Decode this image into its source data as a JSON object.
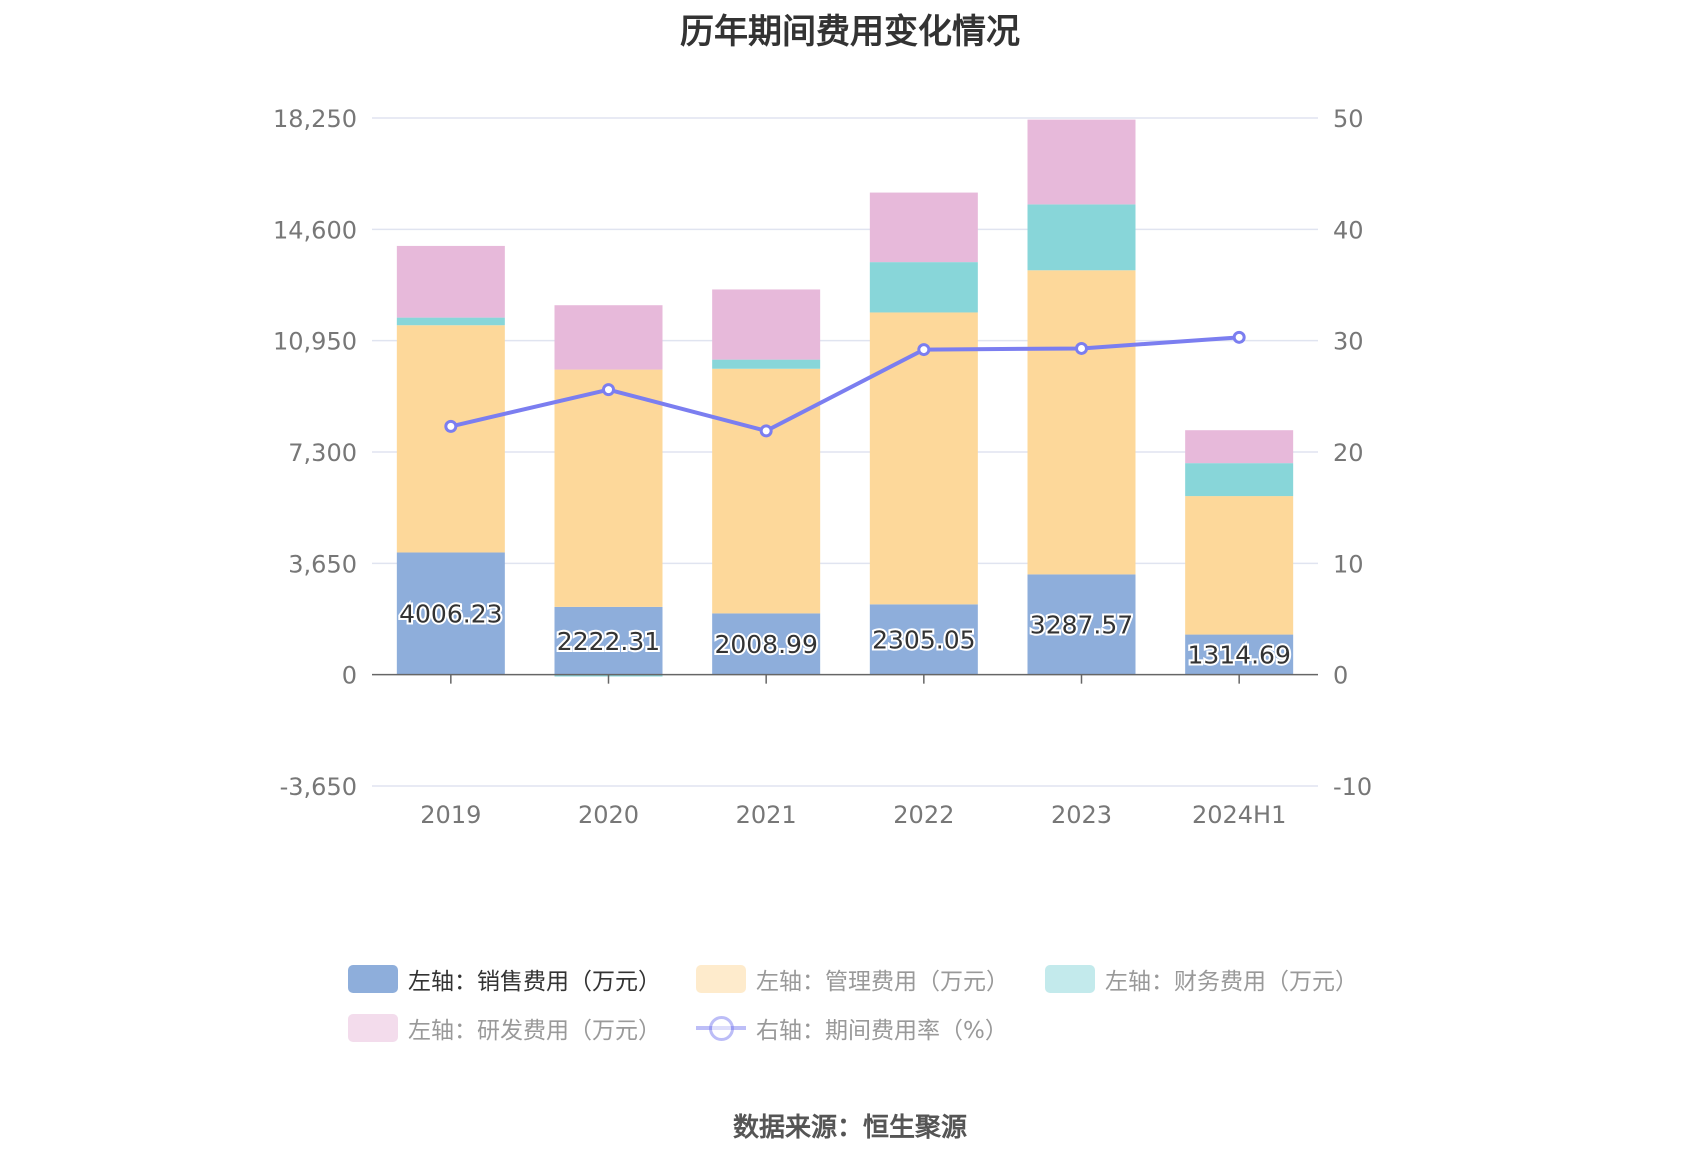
{
  "title": "历年期间费用变化情况",
  "source": "数据来源：恒生聚源",
  "colors": {
    "sales": "#8eaedb",
    "admin": "#fdd89a",
    "finance": "#88d6d9",
    "rnd": "#e7b9da",
    "rate": "#7b7ef0",
    "grid": "#e0e4f0",
    "axis": "#666666",
    "tick_text": "#777777"
  },
  "legend": [
    {
      "label": "左轴：销售费用（万元）",
      "key": "sales",
      "style": "bar",
      "active": true
    },
    {
      "label": "左轴：管理费用（万元）",
      "key": "admin",
      "style": "bar",
      "active": false
    },
    {
      "label": "左轴：财务费用（万元）",
      "key": "finance",
      "style": "bar",
      "active": false
    },
    {
      "label": "左轴：研发费用（万元）",
      "key": "rnd",
      "style": "bar",
      "active": false
    },
    {
      "label": "右轴：期间费用率（%）",
      "key": "rate",
      "style": "line",
      "active": false
    }
  ],
  "chart_data": {
    "type": "bar",
    "stacked": true,
    "title": "历年期间费用变化情况",
    "categories": [
      "2019",
      "2020",
      "2021",
      "2022",
      "2023",
      "2024H1"
    ],
    "left_axis": {
      "min": -3650,
      "max": 18250,
      "ticks": [
        "-3,650",
        "0",
        "3,650",
        "7,300",
        "10,950",
        "14,600",
        "18,250"
      ],
      "tick_values": [
        -3650,
        0,
        3650,
        7300,
        10950,
        14600,
        18250
      ]
    },
    "right_axis": {
      "min": -10,
      "max": 50,
      "ticks": [
        "-10",
        "0",
        "10",
        "20",
        "30",
        "40",
        "50"
      ],
      "tick_values": [
        -10,
        0,
        10,
        20,
        30,
        40,
        50
      ]
    },
    "grid": true,
    "legend_position": "bottom",
    "series": [
      {
        "name": "左轴：销售费用（万元）",
        "key": "sales",
        "axis": "left",
        "values": [
          4006.23,
          2222.31,
          2008.99,
          2305.05,
          3287.57,
          1314.69
        ],
        "labels": [
          "4006.23",
          "2222.31",
          "2008.99",
          "2305.05",
          "3287.57",
          "1314.69"
        ]
      },
      {
        "name": "左轴：管理费用（万元）",
        "key": "admin",
        "axis": "left",
        "values": [
          7450,
          7780,
          8020,
          9570,
          9970,
          4540
        ]
      },
      {
        "name": "左轴：财务费用（万元）",
        "key": "finance",
        "axis": "left",
        "values": [
          250,
          -60,
          300,
          1650,
          2160,
          1080
        ]
      },
      {
        "name": "左轴：研发费用（万元）",
        "key": "rnd",
        "axis": "left",
        "values": [
          2350,
          2110,
          2300,
          2280,
          2780,
          1080
        ]
      },
      {
        "name": "右轴：期间费用率（%）",
        "key": "rate",
        "axis": "right",
        "type": "line",
        "values": [
          22.3,
          25.6,
          21.9,
          29.2,
          29.3,
          30.3
        ]
      }
    ]
  }
}
